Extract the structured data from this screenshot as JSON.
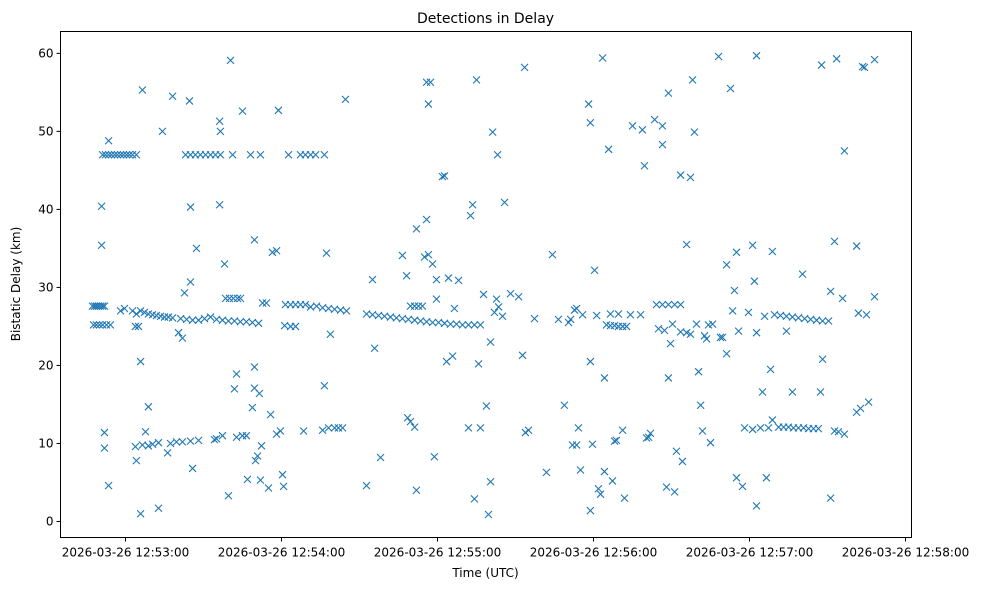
{
  "chart_data": {
    "type": "scatter",
    "title": "Detections in Delay",
    "xlabel": "Time (UTC)",
    "ylabel": "Bistatic Delay (km)",
    "x_units": "seconds since 2026-03-26 12:53:00 UTC",
    "xlim": [
      -25,
      302.3
    ],
    "ylim": [
      -2.05,
      62.8
    ],
    "grid": false,
    "marker": "x",
    "color": "#1f77b4",
    "x_ticks": [
      {
        "value": 0,
        "label": "2026-03-26 12:53:00"
      },
      {
        "value": 60,
        "label": "2026-03-26 12:54:00"
      },
      {
        "value": 120,
        "label": "2026-03-26 12:55:00"
      },
      {
        "value": 180,
        "label": "2026-03-26 12:56:00"
      },
      {
        "value": 240,
        "label": "2026-03-26 12:57:00"
      },
      {
        "value": 300,
        "label": "2026-03-26 12:58:00"
      }
    ],
    "y_ticks": [
      {
        "value": 0,
        "label": "0"
      },
      {
        "value": 10,
        "label": "10"
      },
      {
        "value": 20,
        "label": "20"
      },
      {
        "value": 30,
        "label": "30"
      },
      {
        "value": 40,
        "label": "40"
      },
      {
        "value": 50,
        "label": "50"
      },
      {
        "value": 60,
        "label": "60"
      }
    ],
    "points": [
      [
        -12.7,
        27.6
      ],
      [
        -11.9,
        27.6
      ],
      [
        -11.2,
        27.6
      ],
      [
        -10.4,
        27.6
      ],
      [
        -9.6,
        27.6
      ],
      [
        -8.8,
        27.6
      ],
      [
        -8.1,
        27.6
      ],
      [
        -12.3,
        25.2
      ],
      [
        -11.2,
        25.2
      ],
      [
        -10,
        25.2
      ],
      [
        -8.8,
        25.2
      ],
      [
        -7.3,
        25.2
      ],
      [
        -5.8,
        25.2
      ],
      [
        -8.8,
        47
      ],
      [
        -7.7,
        47
      ],
      [
        -6.5,
        47
      ],
      [
        -5.4,
        47
      ],
      [
        -4.2,
        47
      ],
      [
        -3.1,
        47
      ],
      [
        -1.9,
        47
      ],
      [
        -0.8,
        47
      ],
      [
        0.4,
        47
      ],
      [
        1.5,
        47
      ],
      [
        2.7,
        47
      ],
      [
        4.2,
        47
      ],
      [
        -9.2,
        40.4
      ],
      [
        -9.2,
        35.4
      ],
      [
        -8.1,
        11.4
      ],
      [
        -8.1,
        9.4
      ],
      [
        -6.5,
        4.6
      ],
      [
        -6.5,
        48.8
      ],
      [
        -1.9,
        27
      ],
      [
        -0.4,
        27.3
      ],
      [
        2.7,
        27
      ],
      [
        4.2,
        26.6
      ],
      [
        5.8,
        27
      ],
      [
        7.3,
        26.8
      ],
      [
        8.8,
        26.6
      ],
      [
        10.4,
        26.5
      ],
      [
        11.9,
        26.4
      ],
      [
        13.5,
        26.3
      ],
      [
        15,
        26.2
      ],
      [
        16.5,
        26.2
      ],
      [
        18.1,
        26.1
      ],
      [
        21.2,
        26
      ],
      [
        23.5,
        25.9
      ],
      [
        25.8,
        25.8
      ],
      [
        28.1,
        25.8
      ],
      [
        30.4,
        26
      ],
      [
        32.7,
        26.2
      ],
      [
        35,
        25.9
      ],
      [
        37.3,
        25.8
      ],
      [
        39.6,
        25.7
      ],
      [
        41.9,
        25.7
      ],
      [
        44.2,
        25.6
      ],
      [
        46.5,
        25.6
      ],
      [
        48.8,
        25.5
      ],
      [
        51.2,
        25.4
      ],
      [
        61.2,
        25.1
      ],
      [
        63.5,
        25
      ],
      [
        65.4,
        25
      ],
      [
        3.8,
        9.6
      ],
      [
        6.5,
        9.8
      ],
      [
        8.8,
        9.7
      ],
      [
        10.4,
        9.9
      ],
      [
        12.7,
        10.1
      ],
      [
        17.3,
        10
      ],
      [
        19.6,
        10.2
      ],
      [
        21.9,
        10.2
      ],
      [
        25,
        10.3
      ],
      [
        28.1,
        10.4
      ],
      [
        34.2,
        10.5
      ],
      [
        35,
        10.6
      ],
      [
        6.5,
        55.3
      ],
      [
        5.8,
        1
      ],
      [
        8.8,
        14.7
      ],
      [
        7.7,
        11.5
      ],
      [
        4.2,
        7.8
      ],
      [
        5.8,
        20.5
      ],
      [
        12.7,
        1.7
      ],
      [
        14.2,
        50
      ],
      [
        3.8,
        25
      ],
      [
        5,
        25
      ],
      [
        16.2,
        8.8
      ],
      [
        18.1,
        54.5
      ],
      [
        20.4,
        24.2
      ],
      [
        21.9,
        23.5
      ],
      [
        22.7,
        29.3
      ],
      [
        24.6,
        53.9
      ],
      [
        25,
        40.3
      ],
      [
        25,
        30.7
      ],
      [
        25.8,
        6.8
      ],
      [
        27.3,
        35
      ],
      [
        23.1,
        47
      ],
      [
        25,
        47
      ],
      [
        26.9,
        47
      ],
      [
        28.8,
        47
      ],
      [
        30.8,
        47
      ],
      [
        32.7,
        47
      ],
      [
        34.6,
        47
      ],
      [
        36.5,
        47
      ],
      [
        36.2,
        51.3
      ],
      [
        36.2,
        40.6
      ],
      [
        36.5,
        50
      ],
      [
        37.3,
        11
      ],
      [
        38.1,
        33
      ],
      [
        38.5,
        28.6
      ],
      [
        40,
        28.6
      ],
      [
        41.5,
        28.6
      ],
      [
        43.1,
        28.6
      ],
      [
        44.2,
        28.6
      ],
      [
        39.6,
        3.3
      ],
      [
        40.4,
        59.1
      ],
      [
        41.2,
        47
      ],
      [
        41.9,
        17
      ],
      [
        42.7,
        18.9
      ],
      [
        42.7,
        10.8
      ],
      [
        45,
        52.6
      ],
      [
        45,
        11
      ],
      [
        46.5,
        11
      ],
      [
        46.9,
        5.4
      ],
      [
        48.1,
        47
      ],
      [
        48.8,
        14.6
      ],
      [
        49.6,
        36.1
      ],
      [
        49.6,
        17.1
      ],
      [
        49.6,
        19.8
      ],
      [
        50,
        7.8
      ],
      [
        50.8,
        8.4
      ],
      [
        51.5,
        16.4
      ],
      [
        51.9,
        47
      ],
      [
        51.9,
        5.3
      ],
      [
        52.3,
        9.7
      ],
      [
        52.7,
        28
      ],
      [
        54.2,
        28
      ],
      [
        55,
        4.3
      ],
      [
        55.8,
        13.7
      ],
      [
        56.5,
        34.5
      ],
      [
        58.1,
        34.7
      ],
      [
        58.8,
        52.7
      ],
      [
        58.1,
        11.2
      ],
      [
        59.6,
        11.6
      ],
      [
        60.4,
        6
      ],
      [
        60.8,
        4.5
      ],
      [
        61.5,
        27.8
      ],
      [
        63.5,
        27.8
      ],
      [
        65.4,
        27.8
      ],
      [
        67.3,
        27.8
      ],
      [
        69.2,
        27.8
      ],
      [
        71.2,
        27.5
      ],
      [
        73.5,
        27.6
      ],
      [
        75.8,
        27.4
      ],
      [
        78.1,
        27.3
      ],
      [
        80.4,
        27.2
      ],
      [
        82.7,
        27.1
      ],
      [
        85,
        27
      ],
      [
        62.7,
        47
      ],
      [
        67.3,
        47
      ],
      [
        69.2,
        47
      ],
      [
        71.2,
        47
      ],
      [
        73.1,
        47
      ],
      [
        76.5,
        47
      ],
      [
        68.5,
        11.6
      ],
      [
        75.8,
        11.7
      ],
      [
        76.5,
        17.4
      ],
      [
        77.3,
        34.4
      ],
      [
        78.8,
        24
      ],
      [
        78.1,
        12
      ],
      [
        80.4,
        12
      ],
      [
        81.9,
        12
      ],
      [
        83.5,
        12
      ],
      [
        84.6,
        54.1
      ],
      [
        92.7,
        4.6
      ],
      [
        92.7,
        26.6
      ],
      [
        95,
        26.5
      ],
      [
        97.3,
        26.4
      ],
      [
        99.6,
        26.3
      ],
      [
        101.9,
        26.2
      ],
      [
        104.2,
        26.1
      ],
      [
        106.5,
        26
      ],
      [
        108.8,
        25.9
      ],
      [
        111.2,
        25.8
      ],
      [
        113.5,
        25.7
      ],
      [
        115.8,
        25.6
      ],
      [
        118.1,
        25.5
      ],
      [
        120.4,
        25.5
      ],
      [
        122.7,
        25.4
      ],
      [
        125,
        25.3
      ],
      [
        127.3,
        25.3
      ],
      [
        129.6,
        25.2
      ],
      [
        131.9,
        25.2
      ],
      [
        134.2,
        25.2
      ],
      [
        136.5,
        25.2
      ],
      [
        95,
        31
      ],
      [
        95.8,
        22.2
      ],
      [
        98.1,
        8.2
      ],
      [
        106.5,
        34.1
      ],
      [
        108.1,
        31.5
      ],
      [
        108.5,
        13.3
      ],
      [
        109.6,
        12.8
      ],
      [
        111.2,
        12.1
      ],
      [
        111.9,
        4
      ],
      [
        111.9,
        37.5
      ],
      [
        109.6,
        27.6
      ],
      [
        111.2,
        27.6
      ],
      [
        112.7,
        27.6
      ],
      [
        114.2,
        27.6
      ],
      [
        115,
        33.9
      ],
      [
        115.8,
        38.7
      ],
      [
        115.8,
        56.3
      ],
      [
        117.3,
        56.3
      ],
      [
        116.5,
        53.5
      ],
      [
        116.5,
        34.2
      ],
      [
        118.1,
        33
      ],
      [
        118.8,
        8.3
      ],
      [
        119.6,
        28.5
      ],
      [
        119.6,
        31
      ],
      [
        121.9,
        44.2
      ],
      [
        122.7,
        44.3
      ],
      [
        123.5,
        20.5
      ],
      [
        124.2,
        31.2
      ],
      [
        125.8,
        21.2
      ],
      [
        126.5,
        27.3
      ],
      [
        128.1,
        30.9
      ],
      [
        131.9,
        12
      ],
      [
        132.7,
        39.2
      ],
      [
        133.5,
        40.6
      ],
      [
        134.2,
        2.9
      ],
      [
        135,
        56.6
      ],
      [
        135.8,
        20.2
      ],
      [
        136.5,
        12
      ],
      [
        137.7,
        29.1
      ],
      [
        138.8,
        14.8
      ],
      [
        139.6,
        0.9
      ],
      [
        140.4,
        23
      ],
      [
        140.4,
        5.1
      ],
      [
        141.2,
        49.9
      ],
      [
        141.9,
        26.8
      ],
      [
        142.7,
        28.5
      ],
      [
        143.5,
        27.5
      ],
      [
        143.1,
        47
      ],
      [
        145,
        26.3
      ],
      [
        145.8,
        40.9
      ],
      [
        148.1,
        29.2
      ],
      [
        151.2,
        28.8
      ],
      [
        152.7,
        21.3
      ],
      [
        153.5,
        58.2
      ],
      [
        153.8,
        11.4
      ],
      [
        155,
        11.7
      ],
      [
        157.3,
        26
      ],
      [
        161.9,
        6.3
      ],
      [
        164.2,
        34.2
      ],
      [
        166.5,
        25.9
      ],
      [
        168.8,
        14.9
      ],
      [
        170.4,
        25.5
      ],
      [
        171.2,
        25.9
      ],
      [
        171.9,
        9.8
      ],
      [
        173.5,
        9.8
      ],
      [
        172.7,
        27.1
      ],
      [
        173.5,
        27.3
      ],
      [
        174.2,
        12
      ],
      [
        175,
        6.6
      ],
      [
        175.8,
        26.5
      ],
      [
        178.1,
        53.5
      ],
      [
        178.8,
        51.1
      ],
      [
        178.8,
        1.4
      ],
      [
        178.8,
        20.5
      ],
      [
        179.6,
        9.9
      ],
      [
        180.4,
        32.2
      ],
      [
        181.2,
        26.4
      ],
      [
        181.9,
        4.2
      ],
      [
        182.7,
        3.5
      ],
      [
        183.5,
        59.4
      ],
      [
        184.2,
        18.4
      ],
      [
        184.2,
        6.4
      ],
      [
        185,
        25.2
      ],
      [
        186.5,
        25.1
      ],
      [
        188.1,
        25.1
      ],
      [
        189.6,
        25
      ],
      [
        191.2,
        25
      ],
      [
        192.7,
        25
      ],
      [
        185.8,
        47.7
      ],
      [
        187.3,
        5.2
      ],
      [
        188.1,
        10.3
      ],
      [
        188.8,
        10.4
      ],
      [
        186.5,
        26.6
      ],
      [
        189.6,
        26.6
      ],
      [
        191.2,
        11.7
      ],
      [
        191.9,
        3
      ],
      [
        194.2,
        26.5
      ],
      [
        195,
        50.7
      ],
      [
        198.1,
        26.5
      ],
      [
        198.8,
        50.2
      ],
      [
        199.6,
        45.6
      ],
      [
        200.4,
        10.7
      ],
      [
        201.2,
        10.8
      ],
      [
        201.9,
        11.3
      ],
      [
        203.5,
        51.5
      ],
      [
        204.2,
        27.8
      ],
      [
        206.5,
        27.8
      ],
      [
        208.8,
        27.8
      ],
      [
        211.2,
        27.8
      ],
      [
        213.5,
        27.8
      ],
      [
        205,
        24.7
      ],
      [
        207.3,
        24.5
      ],
      [
        213.5,
        24.3
      ],
      [
        215.8,
        24.2
      ],
      [
        217.3,
        24
      ],
      [
        206.5,
        48.3
      ],
      [
        206.5,
        50.7
      ],
      [
        208.1,
        4.4
      ],
      [
        208.8,
        18.4
      ],
      [
        208.8,
        54.9
      ],
      [
        209.6,
        22.8
      ],
      [
        210.4,
        25.3
      ],
      [
        211.2,
        3.8
      ],
      [
        211.9,
        9
      ],
      [
        213.5,
        44.4
      ],
      [
        214.2,
        7.7
      ],
      [
        215.8,
        35.5
      ],
      [
        217.3,
        44.1
      ],
      [
        218.1,
        56.6
      ],
      [
        218.8,
        49.9
      ],
      [
        219.6,
        25.3
      ],
      [
        220.4,
        19.2
      ],
      [
        221.2,
        14.9
      ],
      [
        221.9,
        11.6
      ],
      [
        222.7,
        23.8
      ],
      [
        223.5,
        23.4
      ],
      [
        224.2,
        25.2
      ],
      [
        225,
        10.1
      ],
      [
        225.8,
        25.3
      ],
      [
        228.1,
        59.6
      ],
      [
        228.8,
        23.6
      ],
      [
        229.6,
        23.6
      ],
      [
        231.2,
        32.9
      ],
      [
        231.2,
        21.5
      ],
      [
        232.7,
        55.5
      ],
      [
        233.5,
        27
      ],
      [
        234.2,
        29.6
      ],
      [
        235,
        34.5
      ],
      [
        235,
        5.6
      ],
      [
        235.8,
        24.4
      ],
      [
        237.3,
        4.5
      ],
      [
        238.1,
        12
      ],
      [
        239.6,
        26.8
      ],
      [
        241.2,
        35.4
      ],
      [
        241.2,
        11.8
      ],
      [
        241.9,
        30.8
      ],
      [
        242.7,
        2
      ],
      [
        242.7,
        59.7
      ],
      [
        242.7,
        24.2
      ],
      [
        244.2,
        12
      ],
      [
        245,
        16.6
      ],
      [
        245.8,
        26.3
      ],
      [
        246.5,
        5.6
      ],
      [
        247.3,
        12
      ],
      [
        248.1,
        19.5
      ],
      [
        248.8,
        13
      ],
      [
        248.8,
        34.6
      ],
      [
        249.6,
        26.5
      ],
      [
        251.9,
        26.4
      ],
      [
        254.2,
        26.3
      ],
      [
        256.5,
        26.2
      ],
      [
        258.8,
        26.1
      ],
      [
        261.2,
        26
      ],
      [
        263.5,
        25.9
      ],
      [
        265.8,
        25.8
      ],
      [
        268.1,
        25.7
      ],
      [
        270.4,
        25.7
      ],
      [
        251.2,
        12.1
      ],
      [
        253.1,
        12.1
      ],
      [
        255,
        12.1
      ],
      [
        256.9,
        12
      ],
      [
        258.8,
        12
      ],
      [
        260.8,
        12
      ],
      [
        262.7,
        11.9
      ],
      [
        264.6,
        11.9
      ],
      [
        254.2,
        24.4
      ],
      [
        256.5,
        16.6
      ],
      [
        260.4,
        31.7
      ],
      [
        266.5,
        11.9
      ],
      [
        267.3,
        16.6
      ],
      [
        267.7,
        58.5
      ],
      [
        268.1,
        20.8
      ],
      [
        271.2,
        3
      ],
      [
        271.2,
        29.5
      ],
      [
        272.7,
        35.9
      ],
      [
        272.7,
        11.6
      ],
      [
        273.5,
        59.3
      ],
      [
        274.2,
        11.5
      ],
      [
        275.8,
        28.6
      ],
      [
        276.5,
        47.5
      ],
      [
        276.5,
        11.2
      ],
      [
        281.2,
        35.3
      ],
      [
        281.2,
        14
      ],
      [
        281.9,
        26.7
      ],
      [
        282.7,
        14.5
      ],
      [
        283.5,
        58.3
      ],
      [
        284.2,
        58.2
      ],
      [
        285,
        26.5
      ],
      [
        285.8,
        15.3
      ],
      [
        288.1,
        28.8
      ],
      [
        288.1,
        59.2
      ]
    ]
  }
}
